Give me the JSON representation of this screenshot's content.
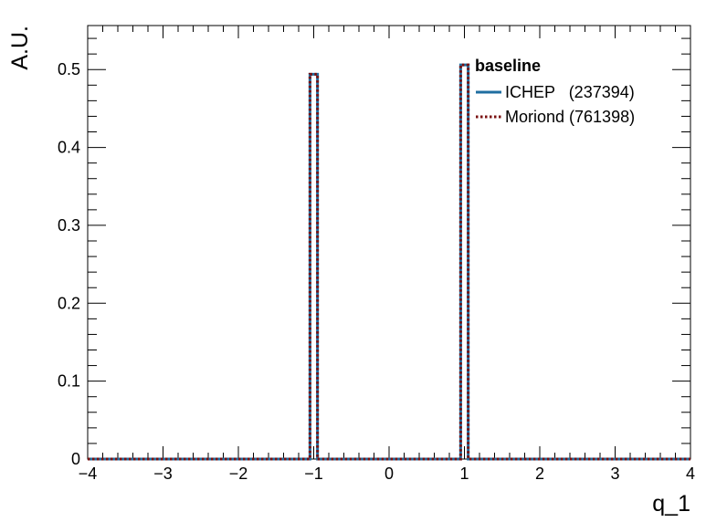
{
  "chart_data": {
    "type": "histogram",
    "xlabel": "q_1",
    "ylabel": "A.U.",
    "xlim": [
      -4,
      4
    ],
    "ylim": [
      0,
      0.5565
    ],
    "x_ticks": [
      -4,
      -3,
      -2,
      -1,
      0,
      1,
      2,
      3,
      4
    ],
    "x_tick_labels": [
      "−4",
      "−3",
      "−2",
      "−1",
      "0",
      "1",
      "2",
      "3",
      "4"
    ],
    "y_ticks": [
      0,
      0.1,
      0.2,
      0.3,
      0.4,
      0.5
    ],
    "y_tick_labels": [
      "0",
      "0.1",
      "0.2",
      "0.3",
      "0.4",
      "0.5"
    ],
    "grid": false,
    "legend": {
      "title": "baseline",
      "placement": "top-right",
      "entries": [
        {
          "label": "ICHEP   (237394)",
          "color": "#1f6ea0",
          "style": "solid"
        },
        {
          "label": "Moriond (761398)",
          "color": "#7a0f0f",
          "style": "dotted"
        }
      ]
    },
    "bin_width": 0.1,
    "series": [
      {
        "name": "ICHEP   (237394)",
        "color": "#1f6ea0",
        "bins": [
          {
            "x": [
              -1.05,
              -0.95
            ],
            "value": 0.494
          },
          {
            "x": [
              0.95,
              1.05
            ],
            "value": 0.506
          }
        ]
      },
      {
        "name": "Moriond (761398)",
        "color": "#7a0f0f",
        "bins": [
          {
            "x": [
              -1.05,
              -0.95
            ],
            "value": 0.494
          },
          {
            "x": [
              0.95,
              1.05
            ],
            "value": 0.506
          }
        ]
      }
    ]
  }
}
